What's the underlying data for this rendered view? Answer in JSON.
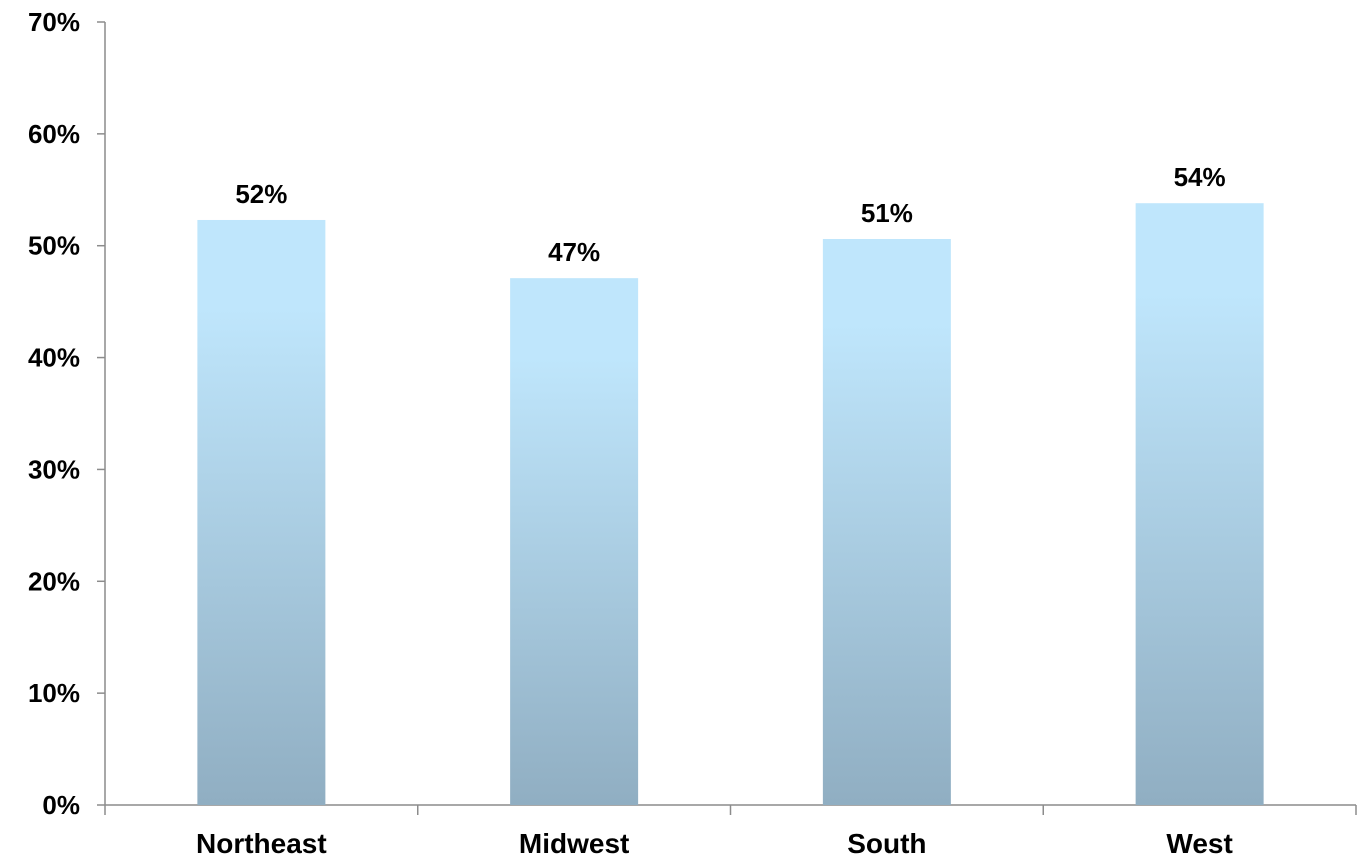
{
  "chart_data": {
    "type": "bar",
    "categories": [
      "Northeast",
      "Midwest",
      "South",
      "West"
    ],
    "values": [
      52.3,
      47.1,
      50.6,
      53.8
    ],
    "data_labels": [
      "52%",
      "47%",
      "51%",
      "54%"
    ],
    "title": "",
    "xlabel": "",
    "ylabel": "",
    "ylim": [
      0,
      70
    ],
    "y_ticks": [
      0,
      10,
      20,
      30,
      40,
      50,
      60,
      70
    ],
    "y_tick_labels": [
      "0%",
      "10%",
      "20%",
      "30%",
      "40%",
      "50%",
      "60%",
      "70%"
    ],
    "grid": false,
    "legend": "none",
    "colors": {
      "bar_top": "#bfe6fc",
      "bar_bottom": "#90aec2",
      "axis": "#8c8c8c",
      "text": "#000000"
    }
  }
}
